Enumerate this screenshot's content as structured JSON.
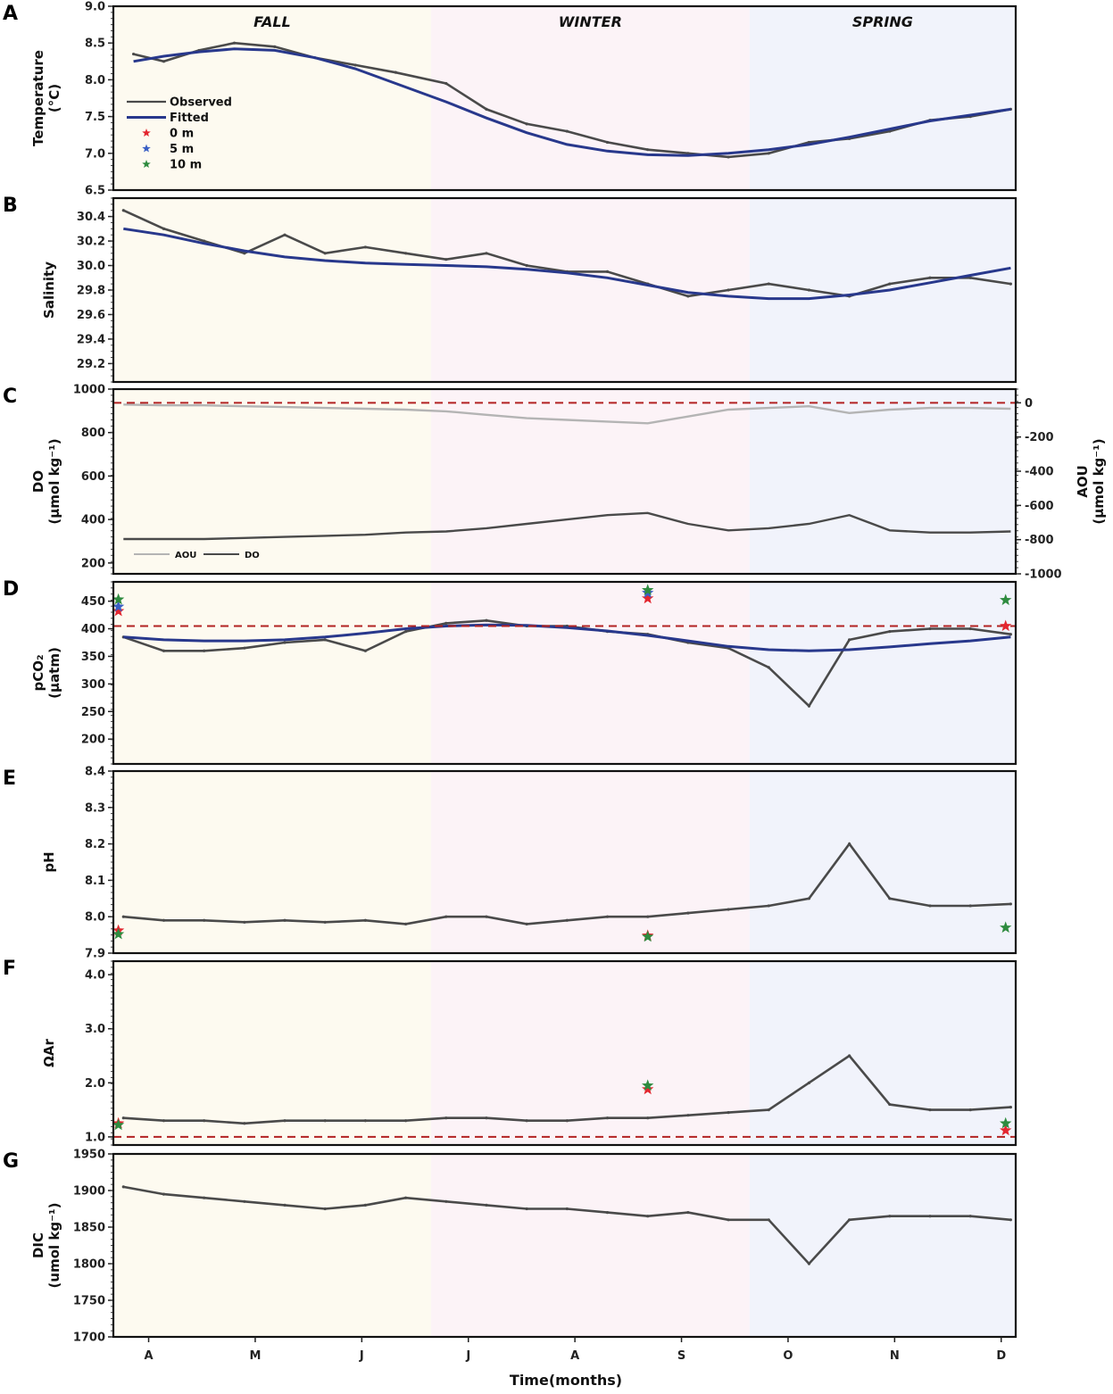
{
  "figure": {
    "xlabel": "Time(months)",
    "month_ticks": [
      "A",
      "M",
      "J",
      "J",
      "A",
      "S",
      "O",
      "N",
      "D"
    ],
    "seasons": [
      {
        "label": "FALL",
        "start": 0.0,
        "end": 0.352,
        "color": "#fdfaf0"
      },
      {
        "label": "WINTER",
        "start": 0.352,
        "end": 0.705,
        "color": "#fcf3f7"
      },
      {
        "label": "SPRING",
        "start": 0.705,
        "end": 1.0,
        "color": "#f1f3fb"
      }
    ],
    "colors": {
      "observed": "#4a4a4a",
      "fitted": "#28388c",
      "aou": "#b4b4b4",
      "reference": "#b22222",
      "star_0m": "#e3262f",
      "star_5m": "#3a5fc4",
      "star_10m": "#2e8b3f"
    }
  },
  "chart_data": [
    {
      "panel": "A",
      "type": "line",
      "ylabel": [
        "Temperature",
        "(°C)"
      ],
      "ylim": [
        6.5,
        9.0
      ],
      "yticks": [
        "6.5",
        "7.0",
        "7.5",
        "8.0",
        "8.5",
        "9.0"
      ],
      "x_months": [
        0.2,
        0.5,
        0.85,
        1.2,
        1.6,
        2.0,
        2.4,
        2.8,
        3.3,
        3.7,
        4.1,
        4.5,
        4.9,
        5.3,
        5.7,
        6.1,
        6.5,
        6.9,
        7.3,
        7.7,
        8.1,
        8.5,
        8.9
      ],
      "observed": [
        8.35,
        8.25,
        8.4,
        8.5,
        8.45,
        8.3,
        8.2,
        8.1,
        7.95,
        7.6,
        7.4,
        7.3,
        7.15,
        7.05,
        7.0,
        6.95,
        7.0,
        7.15,
        7.2,
        7.3,
        7.45,
        7.5,
        7.6
      ],
      "fitted": [
        8.25,
        8.32,
        8.38,
        8.42,
        8.4,
        8.3,
        8.15,
        7.95,
        7.7,
        7.48,
        7.28,
        7.12,
        7.03,
        6.98,
        6.97,
        7.0,
        7.05,
        7.12,
        7.22,
        7.33,
        7.44,
        7.52,
        7.6
      ],
      "legend": [
        {
          "label": "Observed",
          "kind": "line"
        },
        {
          "label": "Fitted",
          "kind": "line"
        },
        {
          "label": "0 m",
          "kind": "star"
        },
        {
          "label": "5 m",
          "kind": "star"
        },
        {
          "label": "10 m",
          "kind": "star"
        }
      ]
    },
    {
      "panel": "B",
      "type": "line",
      "ylabel": [
        "Salinity"
      ],
      "ylim": [
        29.05,
        30.55
      ],
      "yticks": [
        "29.2",
        "29.4",
        "29.6",
        "29.8",
        "30.0",
        "30.2",
        "30.4"
      ],
      "x_months": [
        0.1,
        0.5,
        0.9,
        1.3,
        1.7,
        2.1,
        2.5,
        2.9,
        3.3,
        3.7,
        4.1,
        4.5,
        4.9,
        5.3,
        5.7,
        6.1,
        6.5,
        6.9,
        7.3,
        7.7,
        8.1,
        8.5,
        8.9
      ],
      "observed": [
        30.45,
        30.3,
        30.2,
        30.1,
        30.25,
        30.1,
        30.15,
        30.1,
        30.05,
        30.1,
        30.0,
        29.95,
        29.95,
        29.85,
        29.75,
        29.8,
        29.85,
        29.8,
        29.75,
        29.85,
        29.9,
        29.9,
        29.85
      ],
      "fitted": [
        30.3,
        30.25,
        30.18,
        30.12,
        30.07,
        30.04,
        30.02,
        30.01,
        30.0,
        29.99,
        29.97,
        29.94,
        29.9,
        29.84,
        29.78,
        29.75,
        29.73,
        29.73,
        29.76,
        29.8,
        29.86,
        29.92,
        29.98
      ]
    },
    {
      "panel": "C",
      "type": "line",
      "ylabel": [
        "DO",
        "(µmol kg⁻¹)"
      ],
      "ylabel_right": [
        "AOU",
        "(µmol kg⁻¹)"
      ],
      "ylim": [
        150,
        1000
      ],
      "yticks": [
        "200",
        "400",
        "600",
        "800",
        "1000"
      ],
      "ylim_right": [
        -1000,
        80
      ],
      "yticks_right": [
        "-1000",
        "-800",
        "-600",
        "-400",
        "-200",
        "0"
      ],
      "x_months": [
        0.1,
        0.5,
        0.9,
        1.3,
        1.7,
        2.1,
        2.5,
        2.9,
        3.3,
        3.7,
        4.1,
        4.5,
        4.9,
        5.3,
        5.7,
        6.1,
        6.5,
        6.9,
        7.3,
        7.7,
        8.1,
        8.5,
        8.9
      ],
      "do": [
        310,
        310,
        310,
        315,
        320,
        325,
        330,
        340,
        345,
        360,
        380,
        400,
        420,
        430,
        380,
        350,
        360,
        380,
        420,
        350,
        340,
        340,
        345
      ],
      "aou": [
        -10,
        -15,
        -15,
        -20,
        -25,
        -30,
        -35,
        -40,
        -50,
        -70,
        -90,
        -100,
        -110,
        -120,
        -80,
        -40,
        -30,
        -20,
        -60,
        -40,
        -30,
        -30,
        -35
      ],
      "reference_aou": 0,
      "legend": [
        {
          "label": "AOU"
        },
        {
          "label": "DO"
        }
      ]
    },
    {
      "panel": "D",
      "type": "line",
      "ylabel": [
        "pCO₂",
        "(µatm)"
      ],
      "ylim": [
        155,
        485
      ],
      "yticks": [
        "200",
        "250",
        "300",
        "350",
        "400",
        "450"
      ],
      "x_months": [
        0.1,
        0.5,
        0.9,
        1.3,
        1.7,
        2.1,
        2.5,
        2.9,
        3.3,
        3.7,
        4.1,
        4.5,
        4.9,
        5.3,
        5.7,
        6.1,
        6.5,
        6.9,
        7.3,
        7.7,
        8.1,
        8.5,
        8.9
      ],
      "observed": [
        385,
        360,
        360,
        365,
        375,
        380,
        360,
        395,
        410,
        415,
        405,
        405,
        395,
        390,
        375,
        365,
        330,
        260,
        380,
        395,
        400,
        400,
        390
      ],
      "fitted": [
        385,
        380,
        378,
        378,
        380,
        385,
        392,
        400,
        405,
        407,
        406,
        402,
        396,
        388,
        378,
        368,
        362,
        360,
        362,
        367,
        373,
        378,
        385
      ],
      "reference": 405,
      "stars": [
        {
          "x_month": 0.05,
          "depth": "0 m",
          "value": 432
        },
        {
          "x_month": 0.05,
          "depth": "5 m",
          "value": 440
        },
        {
          "x_month": 0.05,
          "depth": "10 m",
          "value": 453
        },
        {
          "x_month": 5.3,
          "depth": "0 m",
          "value": 455
        },
        {
          "x_month": 5.3,
          "depth": "5 m",
          "value": 465
        },
        {
          "x_month": 5.3,
          "depth": "10 m",
          "value": 470
        },
        {
          "x_month": 8.85,
          "depth": "0 m",
          "value": 405
        },
        {
          "x_month": 8.85,
          "depth": "10 m",
          "value": 452
        }
      ]
    },
    {
      "panel": "E",
      "type": "line",
      "ylabel": [
        "pH"
      ],
      "ylim": [
        7.9,
        8.4
      ],
      "yticks": [
        "7.9",
        "8.0",
        "8.1",
        "8.2",
        "8.3",
        "8.4"
      ],
      "x_months": [
        0.1,
        0.5,
        0.9,
        1.3,
        1.7,
        2.1,
        2.5,
        2.9,
        3.3,
        3.7,
        4.1,
        4.5,
        4.9,
        5.3,
        5.7,
        6.1,
        6.5,
        6.9,
        7.3,
        7.7,
        8.1,
        8.5,
        8.9
      ],
      "observed": [
        8.0,
        7.99,
        7.99,
        7.985,
        7.99,
        7.985,
        7.99,
        7.98,
        8.0,
        8.0,
        7.98,
        7.99,
        8.0,
        8.0,
        8.01,
        8.02,
        8.03,
        8.05,
        8.2,
        8.05,
        8.03,
        8.03,
        8.035
      ],
      "stars": [
        {
          "x_month": 0.05,
          "depth": "0 m",
          "value": 7.962
        },
        {
          "x_month": 0.05,
          "depth": "10 m",
          "value": 7.952
        },
        {
          "x_month": 5.3,
          "depth": "0 m",
          "value": 7.948
        },
        {
          "x_month": 5.3,
          "depth": "10 m",
          "value": 7.945
        },
        {
          "x_month": 8.85,
          "depth": "10 m",
          "value": 7.97
        }
      ]
    },
    {
      "panel": "F",
      "type": "line",
      "ylabel": [
        "ΩAr"
      ],
      "ylim": [
        0.85,
        4.25
      ],
      "yticks": [
        "1.0",
        "2.0",
        "3.0",
        "4.0"
      ],
      "x_months": [
        0.1,
        0.5,
        0.9,
        1.3,
        1.7,
        2.1,
        2.5,
        2.9,
        3.3,
        3.7,
        4.1,
        4.5,
        4.9,
        5.3,
        5.7,
        6.1,
        6.5,
        6.9,
        7.3,
        7.7,
        8.1,
        8.5,
        8.9
      ],
      "observed": [
        1.35,
        1.3,
        1.3,
        1.25,
        1.3,
        1.3,
        1.3,
        1.3,
        1.35,
        1.35,
        1.3,
        1.3,
        1.35,
        1.35,
        1.4,
        1.45,
        1.5,
        2.0,
        2.5,
        1.6,
        1.5,
        1.5,
        1.55
      ],
      "reference": 1.0,
      "stars": [
        {
          "x_month": 0.05,
          "depth": "0 m",
          "value": 1.25
        },
        {
          "x_month": 0.05,
          "depth": "10 m",
          "value": 1.22
        },
        {
          "x_month": 5.3,
          "depth": "0 m",
          "value": 1.88
        },
        {
          "x_month": 5.3,
          "depth": "10 m",
          "value": 1.95
        },
        {
          "x_month": 8.85,
          "depth": "0 m",
          "value": 1.12
        },
        {
          "x_month": 8.85,
          "depth": "10 m",
          "value": 1.25
        }
      ]
    },
    {
      "panel": "G",
      "type": "line",
      "ylabel": [
        "DIC",
        "(umol kg⁻¹)"
      ],
      "ylim": [
        1700,
        1950
      ],
      "yticks": [
        "1700",
        "1750",
        "1800",
        "1850",
        "1900",
        "1950"
      ],
      "x_months": [
        0.1,
        0.5,
        0.9,
        1.3,
        1.7,
        2.1,
        2.5,
        2.9,
        3.3,
        3.7,
        4.1,
        4.5,
        4.9,
        5.3,
        5.7,
        6.1,
        6.5,
        6.9,
        7.3,
        7.7,
        8.1,
        8.5,
        8.9
      ],
      "observed": [
        1905,
        1895,
        1890,
        1885,
        1880,
        1875,
        1880,
        1890,
        1885,
        1880,
        1875,
        1875,
        1870,
        1865,
        1870,
        1860,
        1860,
        1800,
        1860,
        1865,
        1865,
        1865,
        1860
      ]
    }
  ]
}
